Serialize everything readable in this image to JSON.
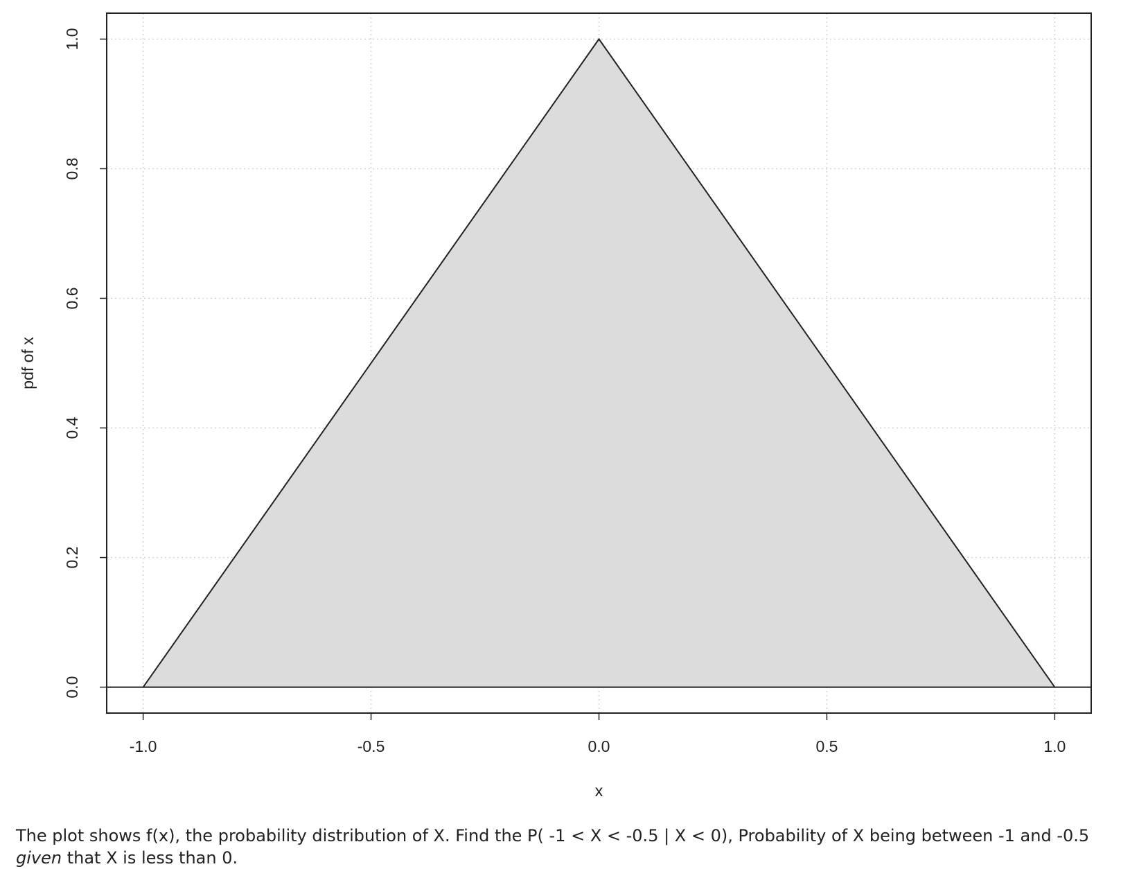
{
  "chart_data": {
    "type": "line",
    "x_label": "x",
    "y_label": "pdf of x",
    "x": [
      -1,
      0,
      1
    ],
    "values": [
      0,
      1,
      0
    ],
    "color": "#222222",
    "fill_color": "#dcdcdc",
    "xlim": [
      -1.08,
      1.08
    ],
    "ylim": [
      -0.04,
      1.04
    ],
    "xticks": [
      {
        "value": -1,
        "label": "-1.0"
      },
      -0.5,
      {
        "value": 0,
        "label": "0.0"
      },
      0.5,
      {
        "value": 1,
        "label": "1.0"
      }
    ],
    "yticks": [
      {
        "value": 0,
        "label": "0.0"
      },
      0.2,
      0.4,
      0.6,
      0.8,
      {
        "value": 1,
        "label": "1.0"
      }
    ],
    "grid": true,
    "hline": 0
  },
  "caption": {
    "before": "The plot shows f(x), the probability distribution of X. Find the P( -1 < X < -0.5 | X < 0), Probability of X being between -1 and -0.5 ",
    "emphasis": "given",
    "after": " that X is less than 0."
  }
}
